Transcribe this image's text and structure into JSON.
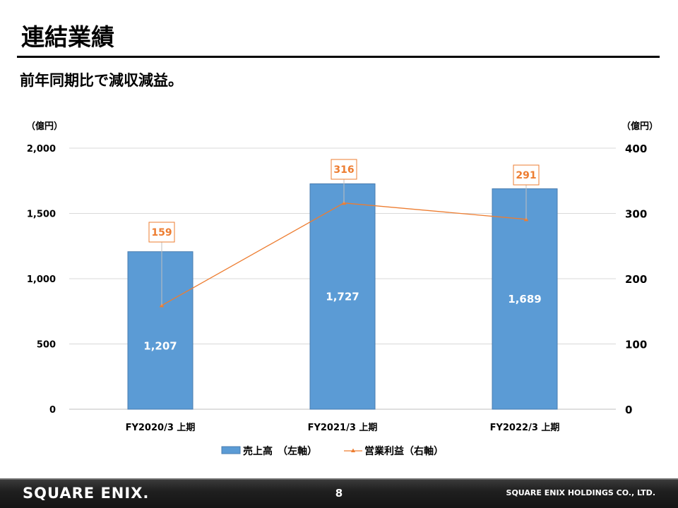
{
  "title": "連結業績",
  "subtitle": "前年同期比で減収減益。",
  "footer": {
    "logo": "SQUARE ENIX.",
    "page_number": "8",
    "company": "SQUARE ENIX HOLDINGS CO., LTD."
  },
  "colors": {
    "bar": "#5b9bd5",
    "bar_border": "#4a7db0",
    "line": "#ed7d31",
    "footer_bg": "#1f1f1f"
  },
  "chart_data": {
    "type": "bar",
    "categories": [
      "FY2020/3 上期",
      "FY2021/3 上期",
      "FY2022/3 上期"
    ],
    "series": [
      {
        "name": "売上高　（左軸）",
        "type": "bar",
        "axis": "left",
        "values": [
          1207,
          1727,
          1689
        ],
        "labels": [
          "1,207",
          "1,727",
          "1,689"
        ]
      },
      {
        "name": "営業利益（右軸）",
        "type": "line",
        "axis": "right",
        "values": [
          159,
          316,
          291
        ],
        "labels": [
          "159",
          "316",
          "291"
        ]
      }
    ],
    "left_axis": {
      "unit": "（億円）",
      "ylim": [
        0,
        2000
      ],
      "ticks": [
        0,
        500,
        1000,
        1500,
        2000
      ],
      "tick_labels": [
        "0",
        "500",
        "1,000",
        "1,500",
        "2,000"
      ]
    },
    "right_axis": {
      "unit": "（億円）",
      "ylim": [
        0,
        400
      ],
      "ticks": [
        0,
        100,
        200,
        300,
        400
      ],
      "tick_labels": [
        "0",
        "100",
        "200",
        "300",
        "400"
      ]
    },
    "grid": true,
    "legend": "bottom"
  }
}
